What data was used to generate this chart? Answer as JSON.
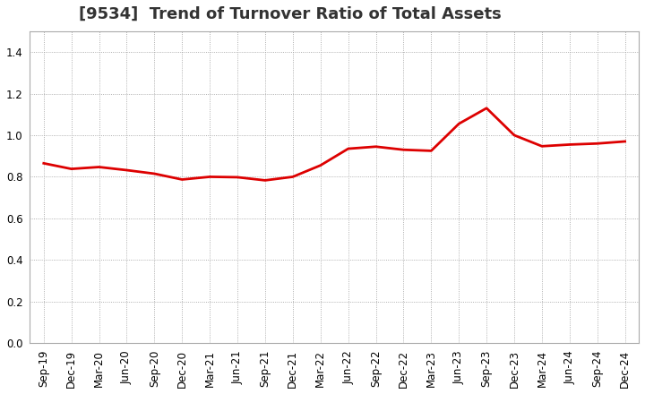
{
  "title": "[9534]  Trend of Turnover Ratio of Total Assets",
  "x_labels": [
    "Sep-19",
    "Dec-19",
    "Mar-20",
    "Jun-20",
    "Sep-20",
    "Dec-20",
    "Mar-21",
    "Jun-21",
    "Sep-21",
    "Dec-21",
    "Mar-22",
    "Jun-22",
    "Sep-22",
    "Dec-22",
    "Mar-23",
    "Jun-23",
    "Sep-23",
    "Dec-23",
    "Mar-24",
    "Jun-24",
    "Sep-24",
    "Dec-24"
  ],
  "values": [
    0.865,
    0.838,
    0.847,
    0.832,
    0.815,
    0.787,
    0.8,
    0.798,
    0.783,
    0.8,
    0.855,
    0.935,
    0.945,
    0.93,
    0.925,
    1.055,
    1.13,
    1.0,
    0.947,
    0.955,
    0.96,
    0.97
  ],
  "line_color": "#dd0000",
  "line_width": 2.0,
  "background_color": "#ffffff",
  "plot_bg_color": "#ffffff",
  "grid_color": "#999999",
  "ylim": [
    0.0,
    1.5
  ],
  "yticks": [
    0.0,
    0.2,
    0.4,
    0.6,
    0.8,
    1.0,
    1.2,
    1.4
  ],
  "title_fontsize": 13,
  "tick_fontsize": 8.5
}
